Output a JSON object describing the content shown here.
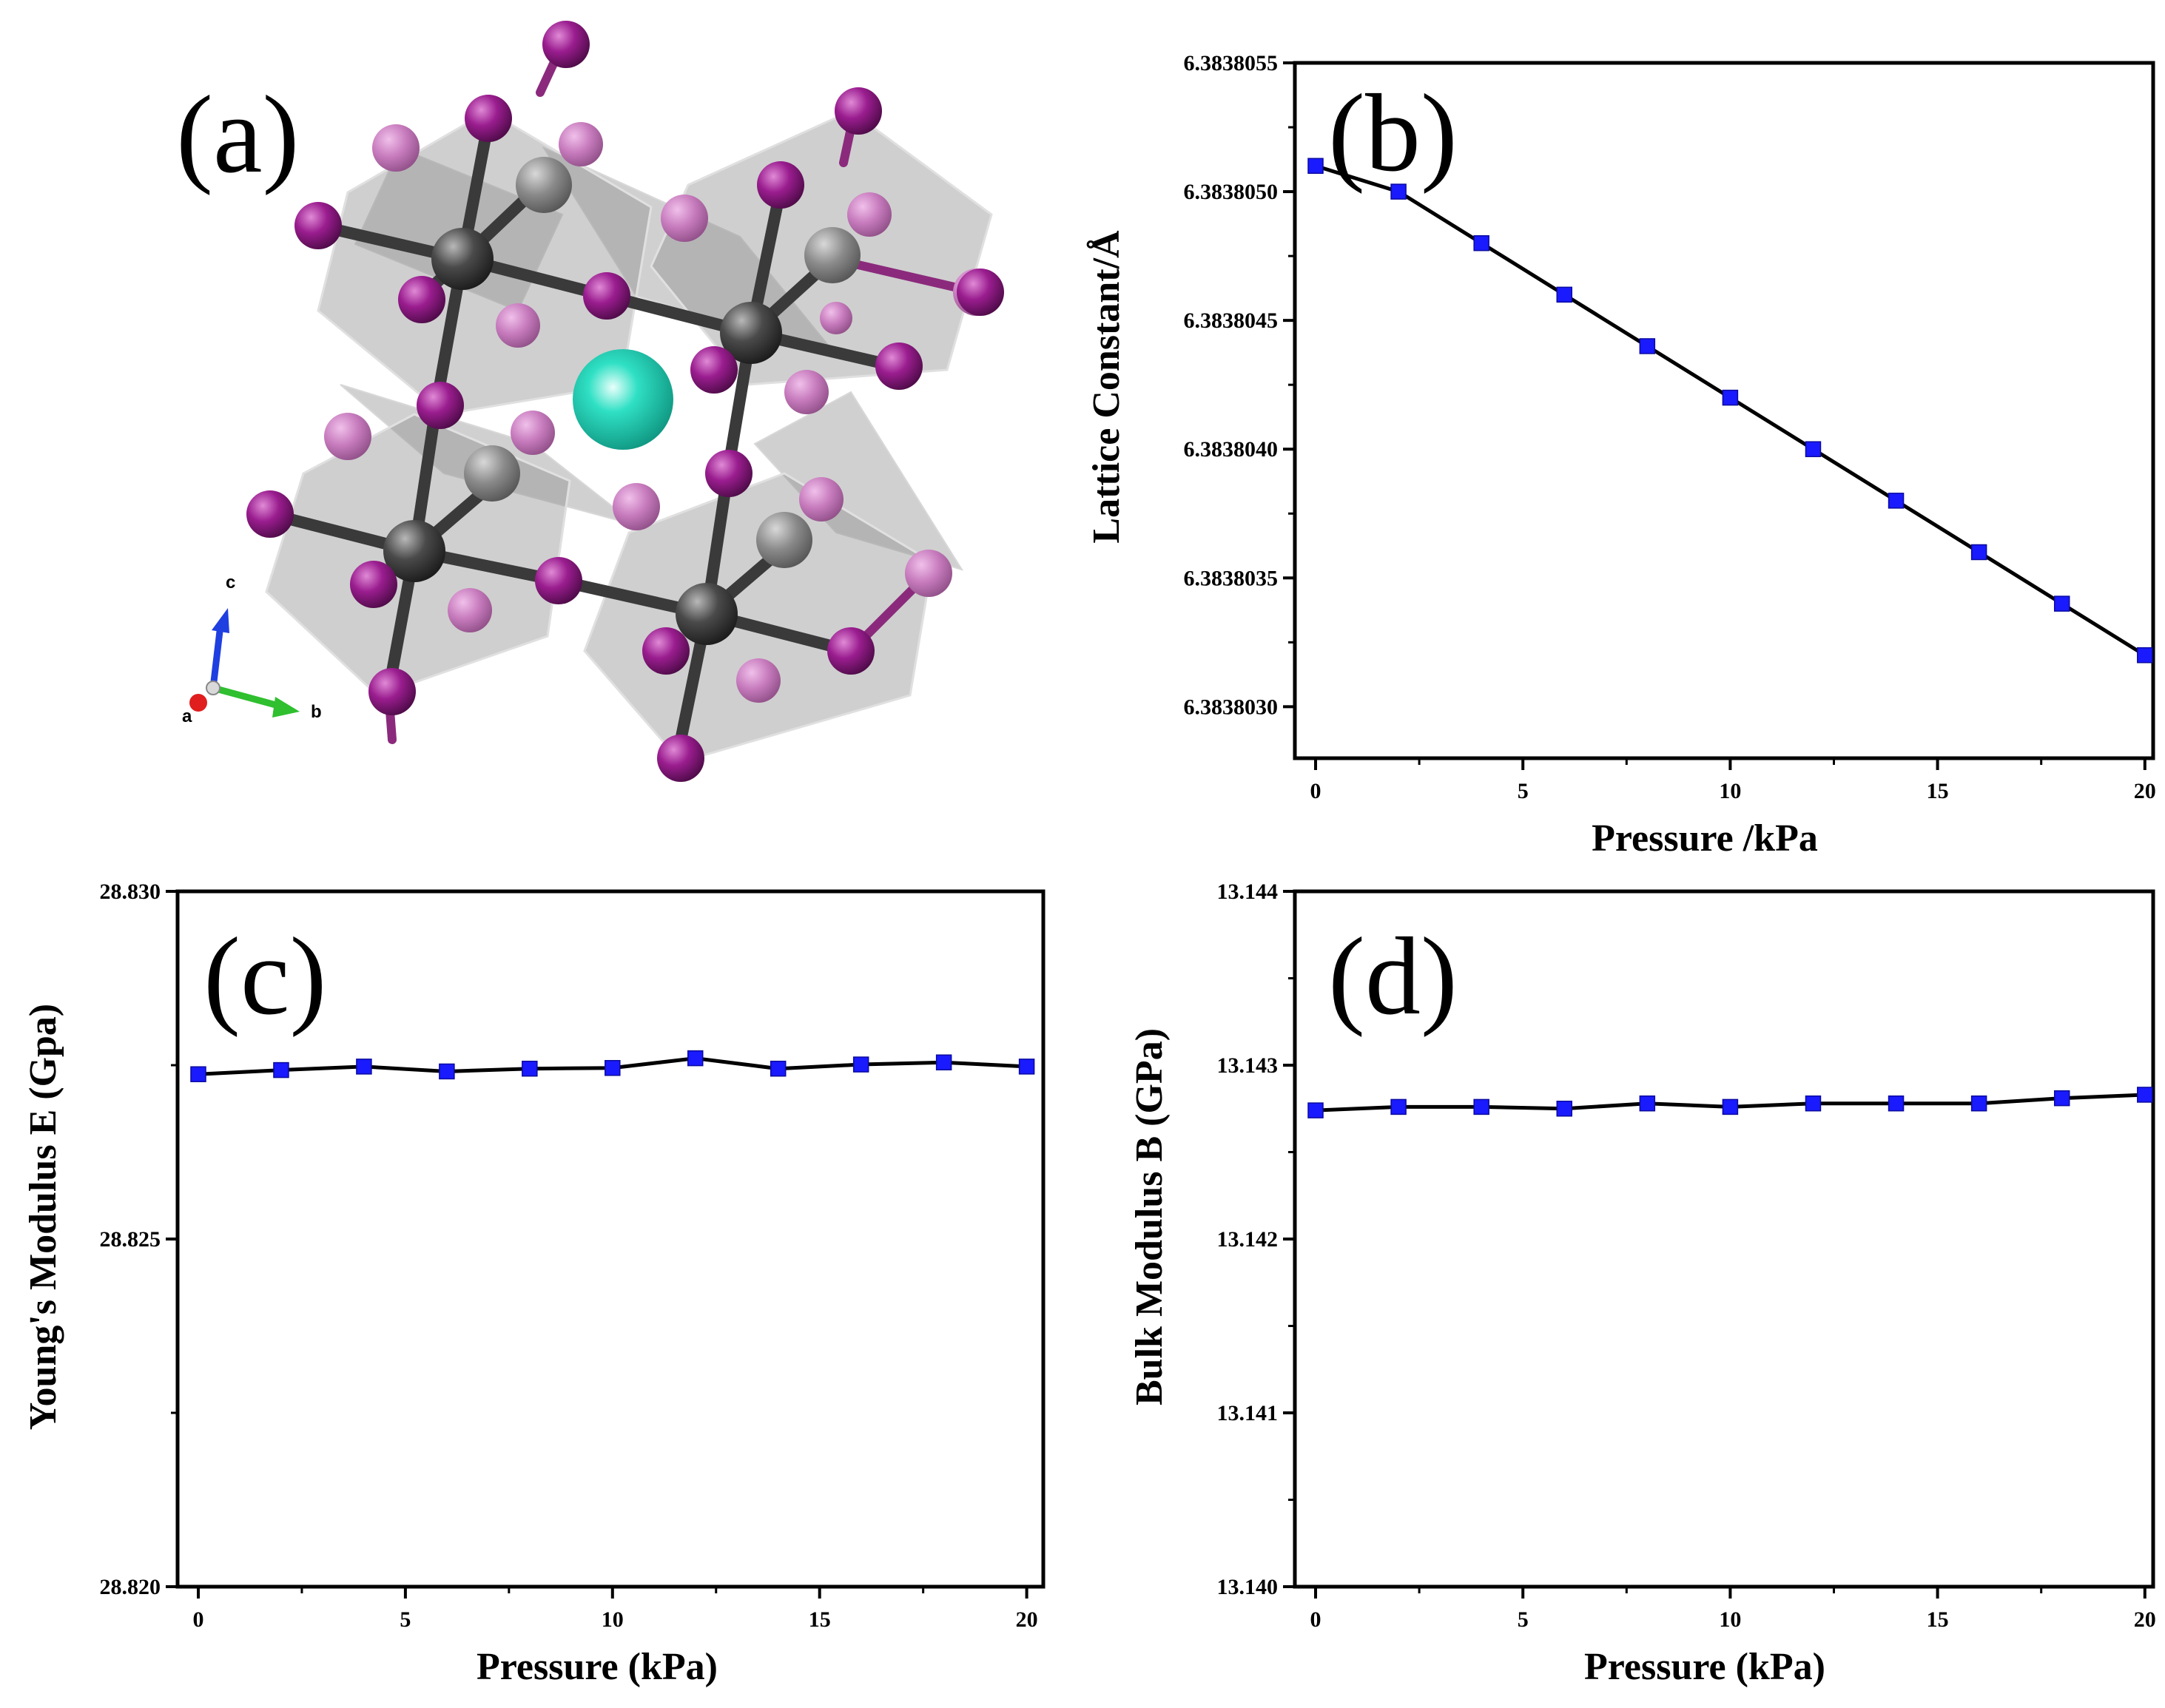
{
  "colors": {
    "marker": "#1a1aff",
    "line": "#000000",
    "iodine": "#9a1d8f",
    "lead": "#4a4a4a",
    "cation": "#2fe0c4"
  },
  "panel_a": {
    "label": "(a)",
    "axes": [
      "a",
      "b",
      "c"
    ],
    "atoms": {
      "halide": "purple-sphere",
      "metal": "dark-grey-sphere",
      "cation": "teal-sphere"
    }
  },
  "chart_data": [
    {
      "id": "b",
      "type": "line",
      "panel_label": "(b)",
      "title": "",
      "xlabel": "Pressure /kPa",
      "ylabel": "Lattice Constant/Å",
      "x": [
        0,
        2,
        4,
        6,
        8,
        10,
        12,
        14,
        16,
        18,
        20
      ],
      "values": [
        6.3838051,
        6.383805,
        6.3838048,
        6.3838046,
        6.3838044,
        6.3838042,
        6.383804,
        6.3838038,
        6.3838036,
        6.3838034,
        6.3838032
      ],
      "xlim": [
        -0.5,
        20.2
      ],
      "ylim": [
        6.3838028,
        6.3838055
      ],
      "xticks": [
        0,
        5,
        10,
        15,
        20
      ],
      "xtick_labels": [
        "0",
        "5",
        "10",
        "15",
        "20"
      ],
      "yticks": [
        6.383803,
        6.3838035,
        6.383804,
        6.3838045,
        6.383805,
        6.3838055
      ],
      "ytick_labels": [
        "6.3838030",
        "6.3838035",
        "6.3838040",
        "6.3838045",
        "6.3838050",
        "6.3838055"
      ],
      "ytick_minor": [
        6.38380325,
        6.38380375,
        6.38380425,
        6.38380475,
        6.38380525
      ],
      "grid": false,
      "marker": "square"
    },
    {
      "id": "c",
      "type": "line",
      "panel_label": "(c)",
      "title": "",
      "xlabel": "Pressure (kPa)",
      "ylabel": "Young's Modulus E (Gpa)",
      "x": [
        0,
        2,
        4,
        6,
        8,
        10,
        12,
        14,
        16,
        18,
        20
      ],
      "values": [
        28.82737,
        28.82743,
        28.82748,
        28.82741,
        28.82745,
        28.82746,
        28.8276,
        28.82745,
        28.82751,
        28.82754,
        28.82748
      ],
      "xlim": [
        -0.5,
        20.4
      ],
      "ylim": [
        28.82,
        28.83
      ],
      "xticks": [
        0,
        5,
        10,
        15,
        20
      ],
      "xtick_labels": [
        "0",
        "5",
        "10",
        "15",
        "20"
      ],
      "yticks": [
        28.82,
        28.825,
        28.83
      ],
      "ytick_labels": [
        "28.820",
        "28.825",
        "28.830"
      ],
      "ytick_minor": [
        28.8225,
        28.8275
      ],
      "grid": false,
      "marker": "square"
    },
    {
      "id": "d",
      "type": "line",
      "panel_label": "(d)",
      "title": "",
      "xlabel": "Pressure (kPa)",
      "ylabel": "Bulk Modulus B (GPa)",
      "x": [
        0,
        2,
        4,
        6,
        8,
        10,
        12,
        14,
        16,
        18,
        20
      ],
      "values": [
        13.14274,
        13.14276,
        13.14276,
        13.14275,
        13.14278,
        13.14276,
        13.14278,
        13.14278,
        13.14278,
        13.14281,
        13.14283
      ],
      "xlim": [
        -0.5,
        20.2
      ],
      "ylim": [
        13.14,
        13.144
      ],
      "xticks": [
        0,
        5,
        10,
        15,
        20
      ],
      "xtick_labels": [
        "0",
        "5",
        "10",
        "15",
        "20"
      ],
      "yticks": [
        13.14,
        13.141,
        13.142,
        13.143,
        13.144
      ],
      "ytick_labels": [
        "13.140",
        "13.141",
        "13.142",
        "13.143",
        "13.144"
      ],
      "ytick_minor": [
        13.1405,
        13.1415,
        13.1425,
        13.1435
      ],
      "grid": false,
      "marker": "square"
    }
  ]
}
